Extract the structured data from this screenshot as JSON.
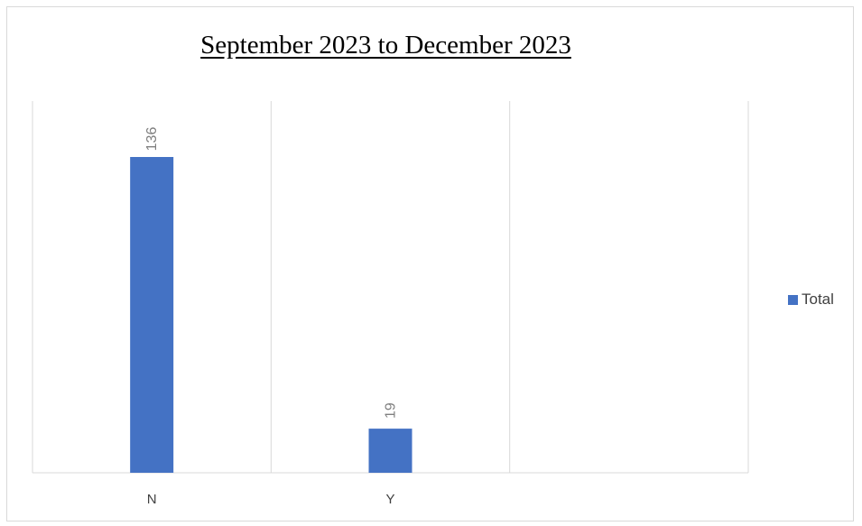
{
  "chart_data": {
    "type": "bar",
    "title": "September 2023 to December 2023",
    "categories": [
      "N",
      "Y",
      ""
    ],
    "series": [
      {
        "name": "Total",
        "values": [
          136,
          19,
          0
        ],
        "color": "#4472c4"
      }
    ],
    "data_labels": [
      "136",
      "19",
      ""
    ],
    "ylim": [
      0,
      150
    ],
    "xlabel": "",
    "ylabel": "",
    "grid": "vertical category separators",
    "legend": "right"
  }
}
